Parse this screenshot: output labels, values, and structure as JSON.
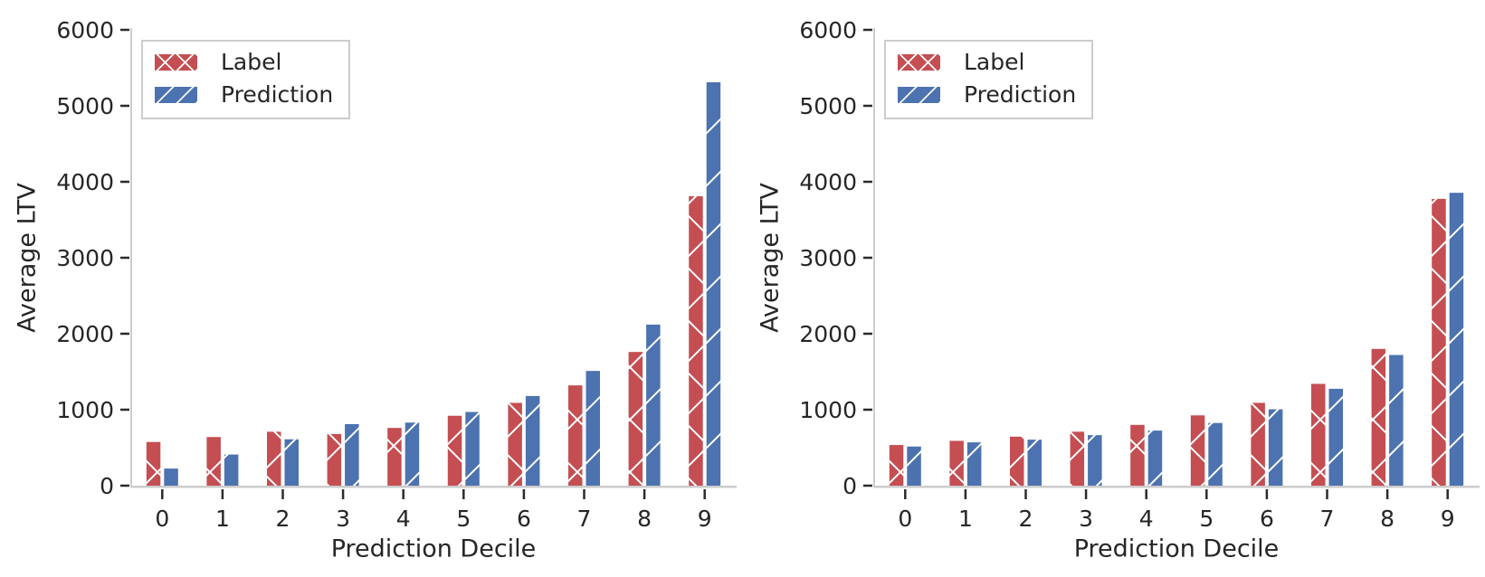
{
  "page": {
    "background": "#ffffff"
  },
  "colors": {
    "label_red": "#c44e52",
    "prediction_blue": "#4c72b0",
    "spine": "#cccccc",
    "tick": "#2b2b2b",
    "text": "#262626",
    "hatch": "#ffffff"
  },
  "chart_data": [
    {
      "type": "bar",
      "title": "",
      "xlabel": "Prediction Decile",
      "ylabel": "Average LTV",
      "categories": [
        "0",
        "1",
        "2",
        "3",
        "4",
        "5",
        "6",
        "7",
        "8",
        "9"
      ],
      "series": [
        {
          "name": "Label",
          "color": "#c44e52",
          "hatch": "x",
          "values": [
            575,
            640,
            710,
            680,
            760,
            920,
            1090,
            1320,
            1760,
            3810
          ]
        },
        {
          "name": "Prediction",
          "color": "#4c72b0",
          "hatch": "/",
          "values": [
            225,
            410,
            610,
            810,
            830,
            970,
            1180,
            1510,
            2120,
            5310
          ]
        }
      ],
      "ylim": [
        0,
        6000
      ],
      "yticks": [
        0,
        1000,
        2000,
        3000,
        4000,
        5000,
        6000
      ],
      "legend_position": "upper left",
      "grid": false
    },
    {
      "type": "bar",
      "title": "",
      "xlabel": "Prediction Decile",
      "ylabel": "Average LTV",
      "categories": [
        "0",
        "1",
        "2",
        "3",
        "4",
        "5",
        "6",
        "7",
        "8",
        "9"
      ],
      "series": [
        {
          "name": "Label",
          "color": "#c44e52",
          "hatch": "x",
          "values": [
            535,
            590,
            645,
            710,
            800,
            925,
            1090,
            1340,
            1800,
            3775
          ]
        },
        {
          "name": "Prediction",
          "color": "#4c72b0",
          "hatch": "/",
          "values": [
            515,
            570,
            605,
            665,
            725,
            825,
            1005,
            1275,
            1720,
            3855
          ]
        }
      ],
      "ylim": [
        0,
        6000
      ],
      "yticks": [
        0,
        1000,
        2000,
        3000,
        4000,
        5000,
        6000
      ],
      "legend_position": "upper left",
      "grid": false
    }
  ]
}
